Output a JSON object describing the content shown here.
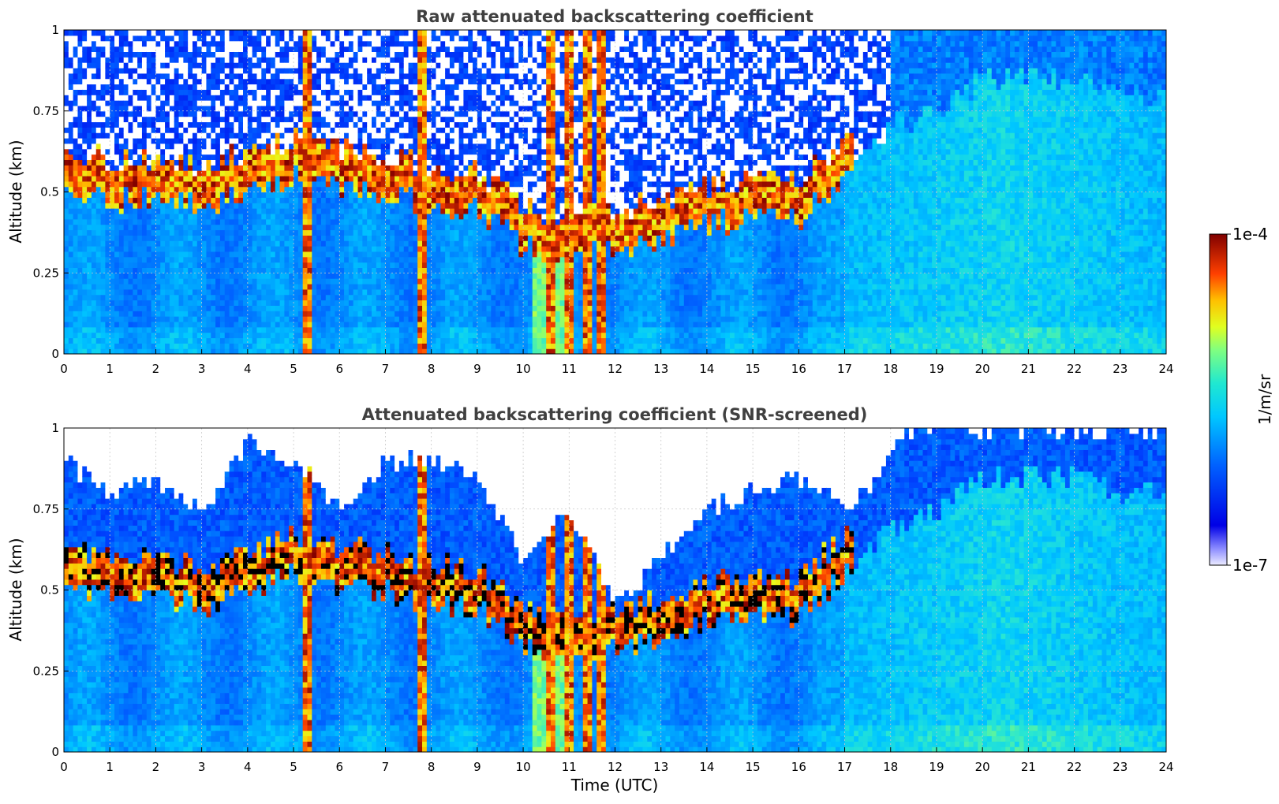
{
  "chart_data": [
    {
      "type": "heatmap",
      "title": "Raw attenuated backscattering coefficient",
      "xlabel": "",
      "ylabel": "Altitude (km)",
      "xlim": [
        0,
        24
      ],
      "ylim": [
        0,
        1
      ],
      "x_ticks": [
        "0",
        "1",
        "2",
        "3",
        "4",
        "5",
        "6",
        "7",
        "8",
        "9",
        "10",
        "11",
        "12",
        "13",
        "14",
        "15",
        "16",
        "17",
        "18",
        "19",
        "20",
        "21",
        "22",
        "23",
        "24"
      ],
      "y_ticks": [
        "0",
        "0.25",
        "0.5",
        "0.75",
        "1"
      ],
      "grid": true,
      "colormap": "jet",
      "screened": false,
      "features": {
        "boundary_layer_top_km": [
          [
            0,
            0.5
          ],
          [
            1,
            0.48
          ],
          [
            2,
            0.48
          ],
          [
            3,
            0.45
          ],
          [
            4,
            0.5
          ],
          [
            5,
            0.55
          ],
          [
            6,
            0.5
          ],
          [
            7,
            0.5
          ],
          [
            8,
            0.45
          ],
          [
            9,
            0.45
          ],
          [
            10,
            0.33
          ],
          [
            11,
            0.3
          ],
          [
            12,
            0.32
          ],
          [
            13,
            0.35
          ],
          [
            14,
            0.4
          ],
          [
            15,
            0.42
          ],
          [
            16,
            0.42
          ],
          [
            17,
            0.55
          ],
          [
            18,
            0.7
          ],
          [
            19,
            0.75
          ],
          [
            20,
            0.85
          ],
          [
            21,
            0.85
          ],
          [
            22,
            0.85
          ],
          [
            23,
            0.8
          ],
          [
            24,
            0.8
          ]
        ],
        "high_signal_columns_utc": [
          5.3,
          7.8,
          10.6,
          11.0,
          11.4,
          11.7
        ]
      }
    },
    {
      "type": "heatmap",
      "title": "Attenuated backscattering coefficient (SNR-screened)",
      "xlabel": "Time (UTC)",
      "ylabel": "Altitude (km)",
      "xlim": [
        0,
        24
      ],
      "ylim": [
        0,
        1
      ],
      "x_ticks": [
        "0",
        "1",
        "2",
        "3",
        "4",
        "5",
        "6",
        "7",
        "8",
        "9",
        "10",
        "11",
        "12",
        "13",
        "14",
        "15",
        "16",
        "17",
        "18",
        "19",
        "20",
        "21",
        "22",
        "23",
        "24"
      ],
      "y_ticks": [
        "0",
        "0.25",
        "0.5",
        "0.75",
        "1"
      ],
      "grid": true,
      "colormap": "jet",
      "screened": true,
      "features": {
        "screened_region_bottom_km": [
          [
            0,
            0.9
          ],
          [
            1,
            0.8
          ],
          [
            2,
            0.85
          ],
          [
            3,
            0.75
          ],
          [
            4,
            0.95
          ],
          [
            5,
            0.9
          ],
          [
            6,
            0.75
          ],
          [
            7,
            0.9
          ],
          [
            8,
            0.9
          ],
          [
            9,
            0.85
          ],
          [
            10,
            0.6
          ],
          [
            11,
            0.75
          ],
          [
            12,
            0.45
          ],
          [
            13,
            0.6
          ],
          [
            14,
            0.75
          ],
          [
            15,
            0.8
          ],
          [
            16,
            0.85
          ],
          [
            17,
            0.75
          ],
          [
            18,
            0.9
          ],
          [
            18.3,
            1.0
          ]
        ],
        "high_signal_columns_utc": [
          5.3,
          7.8,
          10.6,
          11.0,
          11.4,
          11.7
        ]
      }
    }
  ],
  "colorbar": {
    "label": "1/m/sr",
    "max_label": "1e-4",
    "min_label": "1e-7",
    "scale": "log",
    "range": [
      1e-07,
      0.0001
    ]
  }
}
